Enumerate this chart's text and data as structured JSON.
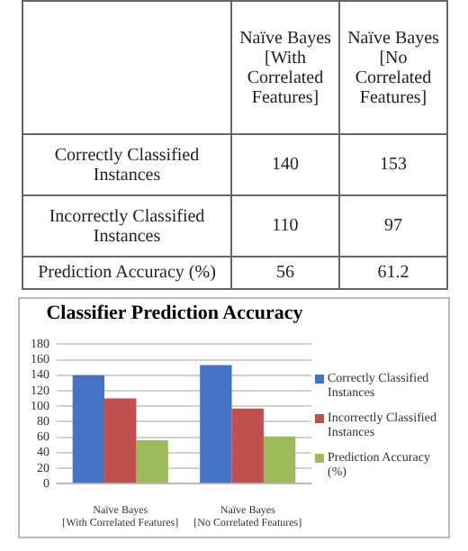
{
  "chart_data": [
    {
      "type": "heatmap",
      "categories": [
        "Naïve Bayes [With Correlated Features]",
        "Naïve Bayes [No Correlated Features]"
      ],
      "y_categories": [
        "Correctly Classified Instances",
        "Incorrectly Classified Instances",
        "Prediction Accuracy (%)"
      ],
      "cells": [
        [
          140,
          153
        ],
        [
          110,
          97
        ],
        [
          56,
          61.2
        ]
      ],
      "data_labels": true
    },
    {
      "type": "bar",
      "title": "Classifier Prediction Accuracy",
      "categories": [
        "Naïve Bayes [With Correlated Features]",
        "Naïve Bayes [No Correlated Features]"
      ],
      "series": [
        {
          "name": "Correctly Classified Instances",
          "color": "#4472c4",
          "values": [
            140,
            153
          ]
        },
        {
          "name": "Incorrectly Classified Instances",
          "color": "#c0504d",
          "values": [
            110,
            97
          ]
        },
        {
          "name": "Prediction Accuracy (%)",
          "color": "#9bbb59",
          "values": [
            56,
            61
          ]
        }
      ],
      "ylim": [
        0,
        180
      ],
      "yticks": [
        0,
        20,
        40,
        60,
        80,
        100,
        120,
        140,
        160,
        180
      ],
      "grid": "y",
      "legend": "right"
    }
  ]
}
